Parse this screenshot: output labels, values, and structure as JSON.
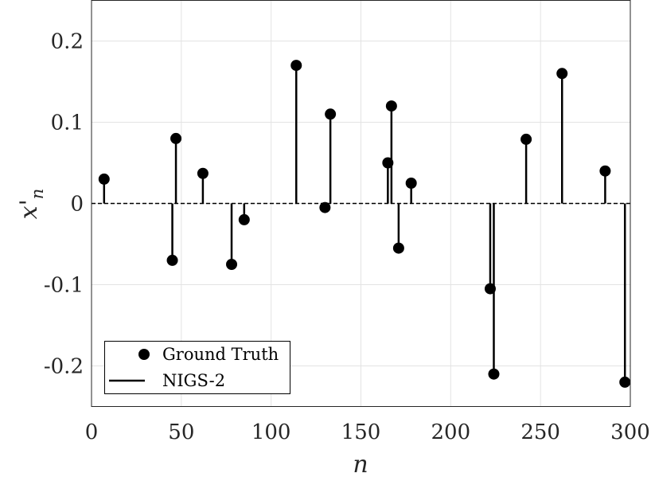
{
  "chart_data": {
    "type": "stem",
    "xlabel": "n",
    "ylabel": "x'",
    "ylabel_subscript": "n",
    "xlim": [
      0,
      300
    ],
    "ylim": [
      -0.25,
      0.25
    ],
    "x_ticks": [
      0,
      50,
      100,
      150,
      200,
      250,
      300
    ],
    "x_tick_labels": [
      "0",
      "50",
      "100",
      "150",
      "200",
      "250",
      "300"
    ],
    "y_ticks": [
      0.2,
      0.1,
      0,
      -0.1,
      -0.2
    ],
    "y_tick_labels": [
      "0.2",
      "0.1",
      "0",
      "-0.1",
      "-0.2"
    ],
    "grid": true,
    "legend_position": "bottom-left",
    "series": [
      {
        "name": "Ground Truth",
        "style": "stem-marker",
        "color": "#000000",
        "x": [
          7,
          45,
          47,
          62,
          78,
          85,
          114,
          130,
          133,
          165,
          167,
          171,
          178,
          222,
          224,
          242,
          262,
          286,
          297
        ],
        "y": [
          0.03,
          -0.07,
          0.08,
          0.037,
          -0.075,
          -0.02,
          0.17,
          -0.005,
          0.11,
          0.05,
          0.12,
          -0.055,
          0.025,
          -0.105,
          -0.21,
          0.079,
          0.16,
          0.04,
          -0.22
        ]
      },
      {
        "name": "NIGS-2",
        "style": "stem-line",
        "color": "#000000",
        "x": [
          7,
          45,
          47,
          62,
          78,
          85,
          114,
          130,
          133,
          165,
          167,
          171,
          178,
          222,
          224,
          242,
          262,
          286,
          297
        ],
        "y": [
          0.03,
          -0.07,
          0.08,
          0.037,
          -0.075,
          -0.02,
          0.17,
          -0.005,
          0.11,
          0.05,
          0.12,
          -0.055,
          0.025,
          -0.105,
          -0.21,
          0.079,
          0.16,
          0.04,
          -0.22
        ]
      }
    ]
  }
}
